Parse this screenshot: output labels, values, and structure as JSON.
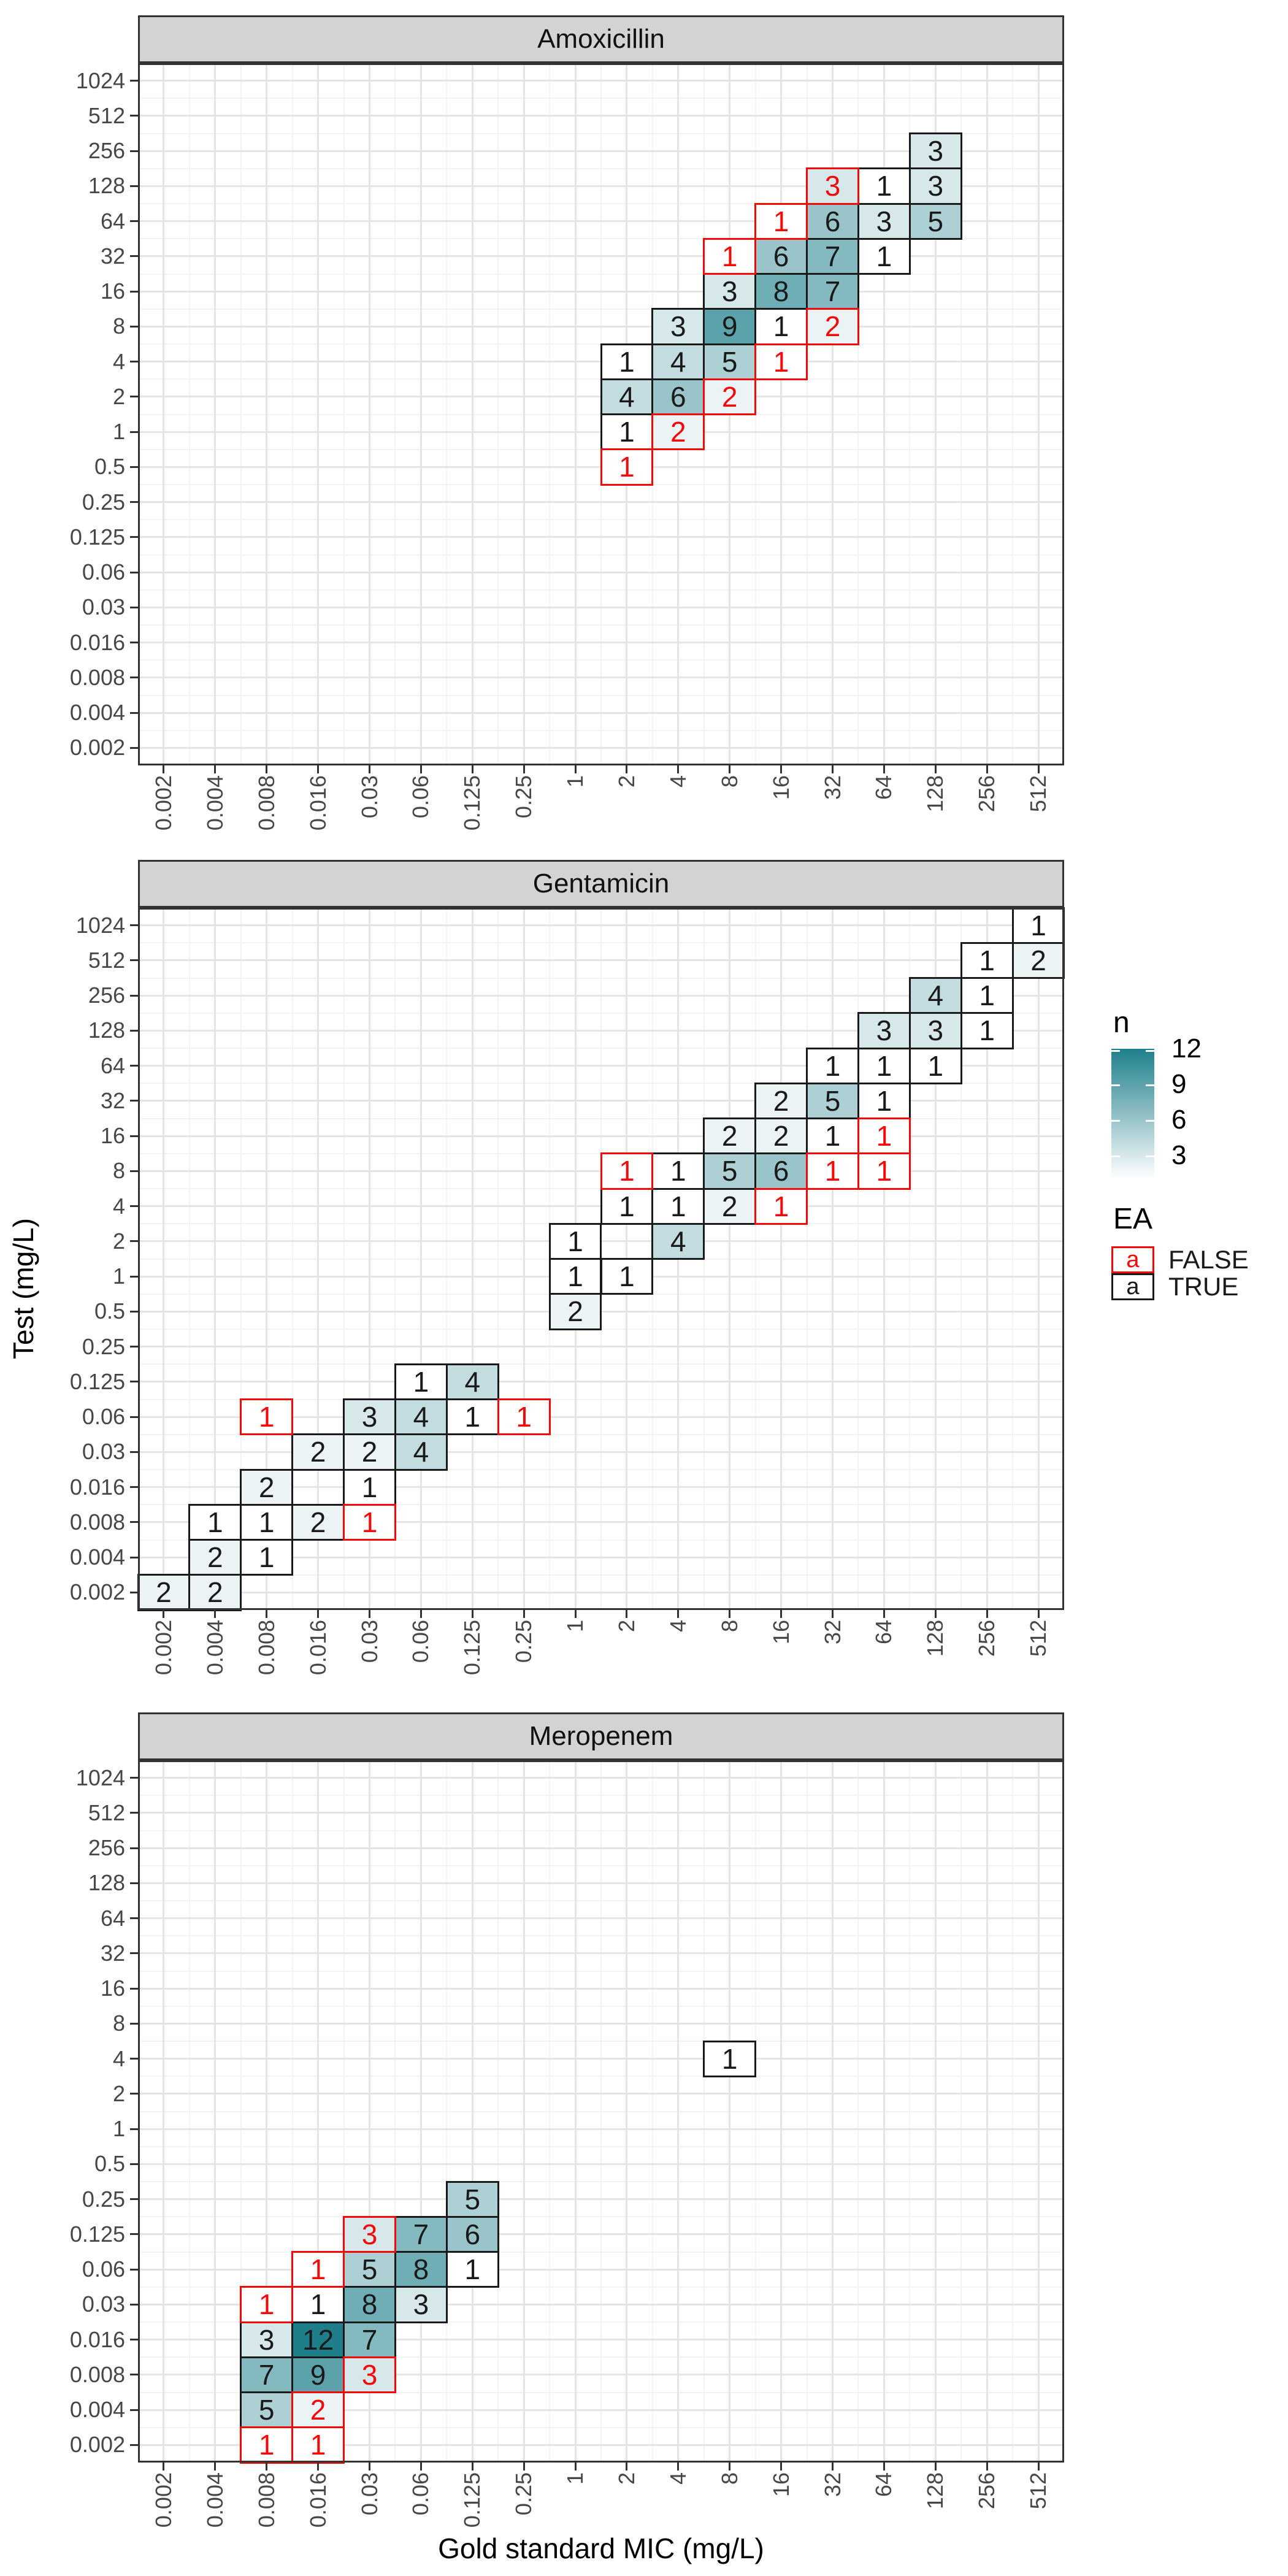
{
  "chart_data": {
    "type": "heatmap",
    "title": "",
    "xlabel": "Gold standard MIC (mg/L)",
    "ylabel": "Test (mg/L)",
    "x_categories": [
      "0.002",
      "0.004",
      "0.008",
      "0.016",
      "0.03",
      "0.06",
      "0.125",
      "0.25",
      "1",
      "2",
      "4",
      "8",
      "16",
      "32",
      "64",
      "128",
      "256",
      "512"
    ],
    "y_categories_top_to_bottom": [
      "1024",
      "512",
      "256",
      "128",
      "64",
      "32",
      "16",
      "8",
      "4",
      "2",
      "1",
      "0.5",
      "0.25",
      "0.125",
      "0.06",
      "0.03",
      "0.016",
      "0.008",
      "0.004",
      "0.002"
    ],
    "fill_scale": {
      "name": "n",
      "low": "#FFFFFF",
      "high": "#1E7F8B",
      "domain": [
        1,
        12
      ],
      "legend_ticks": [
        12,
        9,
        6,
        3
      ]
    },
    "border_scale": {
      "name": "EA",
      "false_color": "#F40909",
      "true_color": "#1A1A1A",
      "items": [
        {
          "key": "a",
          "label": "FALSE"
        },
        {
          "key": "a",
          "label": "TRUE"
        }
      ]
    },
    "facets": [
      {
        "title": "Amoxicillin",
        "cells": [
          {
            "x": "128",
            "y": "256",
            "n": 3,
            "ea": true
          },
          {
            "x": "32",
            "y": "128",
            "n": 3,
            "ea": false
          },
          {
            "x": "64",
            "y": "128",
            "n": 1,
            "ea": true
          },
          {
            "x": "128",
            "y": "128",
            "n": 3,
            "ea": true
          },
          {
            "x": "16",
            "y": "64",
            "n": 1,
            "ea": false
          },
          {
            "x": "32",
            "y": "64",
            "n": 6,
            "ea": true
          },
          {
            "x": "64",
            "y": "64",
            "n": 3,
            "ea": true
          },
          {
            "x": "128",
            "y": "64",
            "n": 5,
            "ea": true
          },
          {
            "x": "8",
            "y": "32",
            "n": 1,
            "ea": false
          },
          {
            "x": "16",
            "y": "32",
            "n": 6,
            "ea": true
          },
          {
            "x": "32",
            "y": "32",
            "n": 7,
            "ea": true
          },
          {
            "x": "64",
            "y": "32",
            "n": 1,
            "ea": true
          },
          {
            "x": "8",
            "y": "16",
            "n": 3,
            "ea": true
          },
          {
            "x": "16",
            "y": "16",
            "n": 8,
            "ea": true
          },
          {
            "x": "32",
            "y": "16",
            "n": 7,
            "ea": true
          },
          {
            "x": "4",
            "y": "8",
            "n": 3,
            "ea": true
          },
          {
            "x": "8",
            "y": "8",
            "n": 9,
            "ea": true
          },
          {
            "x": "16",
            "y": "8",
            "n": 1,
            "ea": true
          },
          {
            "x": "32",
            "y": "8",
            "n": 2,
            "ea": false
          },
          {
            "x": "2",
            "y": "4",
            "n": 1,
            "ea": true
          },
          {
            "x": "4",
            "y": "4",
            "n": 4,
            "ea": true
          },
          {
            "x": "8",
            "y": "4",
            "n": 5,
            "ea": true
          },
          {
            "x": "16",
            "y": "4",
            "n": 1,
            "ea": false
          },
          {
            "x": "2",
            "y": "2",
            "n": 4,
            "ea": true
          },
          {
            "x": "4",
            "y": "2",
            "n": 6,
            "ea": true
          },
          {
            "x": "8",
            "y": "2",
            "n": 2,
            "ea": false
          },
          {
            "x": "2",
            "y": "1",
            "n": 1,
            "ea": true
          },
          {
            "x": "4",
            "y": "1",
            "n": 2,
            "ea": false
          },
          {
            "x": "2",
            "y": "0.5",
            "n": 1,
            "ea": false
          }
        ]
      },
      {
        "title": "Gentamicin",
        "cells": [
          {
            "x": "512",
            "y": "1024",
            "n": 1,
            "ea": true
          },
          {
            "x": "256",
            "y": "512",
            "n": 1,
            "ea": true
          },
          {
            "x": "512",
            "y": "512",
            "n": 2,
            "ea": true
          },
          {
            "x": "128",
            "y": "256",
            "n": 4,
            "ea": true
          },
          {
            "x": "256",
            "y": "256",
            "n": 1,
            "ea": true
          },
          {
            "x": "64",
            "y": "128",
            "n": 3,
            "ea": true
          },
          {
            "x": "128",
            "y": "128",
            "n": 3,
            "ea": true
          },
          {
            "x": "256",
            "y": "128",
            "n": 1,
            "ea": true
          },
          {
            "x": "32",
            "y": "64",
            "n": 1,
            "ea": true
          },
          {
            "x": "64",
            "y": "64",
            "n": 1,
            "ea": true
          },
          {
            "x": "128",
            "y": "64",
            "n": 1,
            "ea": true
          },
          {
            "x": "16",
            "y": "32",
            "n": 2,
            "ea": true
          },
          {
            "x": "32",
            "y": "32",
            "n": 5,
            "ea": true
          },
          {
            "x": "64",
            "y": "32",
            "n": 1,
            "ea": true
          },
          {
            "x": "8",
            "y": "16",
            "n": 2,
            "ea": true
          },
          {
            "x": "16",
            "y": "16",
            "n": 2,
            "ea": true
          },
          {
            "x": "32",
            "y": "16",
            "n": 1,
            "ea": true
          },
          {
            "x": "64",
            "y": "16",
            "n": 1,
            "ea": false
          },
          {
            "x": "2",
            "y": "8",
            "n": 1,
            "ea": false
          },
          {
            "x": "4",
            "y": "8",
            "n": 1,
            "ea": true
          },
          {
            "x": "8",
            "y": "8",
            "n": 5,
            "ea": true
          },
          {
            "x": "16",
            "y": "8",
            "n": 6,
            "ea": true
          },
          {
            "x": "32",
            "y": "8",
            "n": 1,
            "ea": false
          },
          {
            "x": "64",
            "y": "8",
            "n": 1,
            "ea": false
          },
          {
            "x": "2",
            "y": "4",
            "n": 1,
            "ea": true
          },
          {
            "x": "4",
            "y": "4",
            "n": 1,
            "ea": true
          },
          {
            "x": "8",
            "y": "4",
            "n": 2,
            "ea": true
          },
          {
            "x": "16",
            "y": "4",
            "n": 1,
            "ea": false
          },
          {
            "x": "1",
            "y": "2",
            "n": 1,
            "ea": true
          },
          {
            "x": "4",
            "y": "2",
            "n": 4,
            "ea": true
          },
          {
            "x": "1",
            "y": "1",
            "n": 1,
            "ea": true
          },
          {
            "x": "2",
            "y": "1",
            "n": 1,
            "ea": true
          },
          {
            "x": "1",
            "y": "0.5",
            "n": 2,
            "ea": true
          },
          {
            "x": "0.06",
            "y": "0.125",
            "n": 1,
            "ea": true
          },
          {
            "x": "0.125",
            "y": "0.125",
            "n": 4,
            "ea": true
          },
          {
            "x": "0.008",
            "y": "0.06",
            "n": 1,
            "ea": false
          },
          {
            "x": "0.03",
            "y": "0.06",
            "n": 3,
            "ea": true
          },
          {
            "x": "0.06",
            "y": "0.06",
            "n": 4,
            "ea": true
          },
          {
            "x": "0.125",
            "y": "0.06",
            "n": 1,
            "ea": true
          },
          {
            "x": "0.25",
            "y": "0.06",
            "n": 1,
            "ea": false
          },
          {
            "x": "0.016",
            "y": "0.03",
            "n": 2,
            "ea": true
          },
          {
            "x": "0.03",
            "y": "0.03",
            "n": 2,
            "ea": true
          },
          {
            "x": "0.06",
            "y": "0.03",
            "n": 4,
            "ea": true
          },
          {
            "x": "0.008",
            "y": "0.016",
            "n": 2,
            "ea": true
          },
          {
            "x": "0.03",
            "y": "0.016",
            "n": 1,
            "ea": true
          },
          {
            "x": "0.004",
            "y": "0.008",
            "n": 1,
            "ea": true
          },
          {
            "x": "0.008",
            "y": "0.008",
            "n": 1,
            "ea": true
          },
          {
            "x": "0.016",
            "y": "0.008",
            "n": 2,
            "ea": true
          },
          {
            "x": "0.03",
            "y": "0.008",
            "n": 1,
            "ea": false
          },
          {
            "x": "0.004",
            "y": "0.004",
            "n": 2,
            "ea": true
          },
          {
            "x": "0.008",
            "y": "0.004",
            "n": 1,
            "ea": true
          },
          {
            "x": "0.002",
            "y": "0.002",
            "n": 2,
            "ea": true
          },
          {
            "x": "0.004",
            "y": "0.002",
            "n": 2,
            "ea": true
          }
        ]
      },
      {
        "title": "Meropenem",
        "cells": [
          {
            "x": "8",
            "y": "4",
            "n": 1,
            "ea": true
          },
          {
            "x": "0.125",
            "y": "0.25",
            "n": 5,
            "ea": true
          },
          {
            "x": "0.03",
            "y": "0.125",
            "n": 3,
            "ea": false
          },
          {
            "x": "0.06",
            "y": "0.125",
            "n": 7,
            "ea": true
          },
          {
            "x": "0.125",
            "y": "0.125",
            "n": 6,
            "ea": true
          },
          {
            "x": "0.016",
            "y": "0.06",
            "n": 1,
            "ea": false
          },
          {
            "x": "0.03",
            "y": "0.06",
            "n": 5,
            "ea": true
          },
          {
            "x": "0.06",
            "y": "0.06",
            "n": 8,
            "ea": true
          },
          {
            "x": "0.125",
            "y": "0.06",
            "n": 1,
            "ea": true
          },
          {
            "x": "0.008",
            "y": "0.03",
            "n": 1,
            "ea": false
          },
          {
            "x": "0.016",
            "y": "0.03",
            "n": 1,
            "ea": true
          },
          {
            "x": "0.03",
            "y": "0.03",
            "n": 8,
            "ea": true
          },
          {
            "x": "0.06",
            "y": "0.03",
            "n": 3,
            "ea": true
          },
          {
            "x": "0.008",
            "y": "0.016",
            "n": 3,
            "ea": true
          },
          {
            "x": "0.016",
            "y": "0.016",
            "n": 12,
            "ea": true
          },
          {
            "x": "0.03",
            "y": "0.016",
            "n": 7,
            "ea": true
          },
          {
            "x": "0.008",
            "y": "0.008",
            "n": 7,
            "ea": true
          },
          {
            "x": "0.016",
            "y": "0.008",
            "n": 9,
            "ea": true
          },
          {
            "x": "0.03",
            "y": "0.008",
            "n": 3,
            "ea": false
          },
          {
            "x": "0.008",
            "y": "0.004",
            "n": 5,
            "ea": true
          },
          {
            "x": "0.016",
            "y": "0.004",
            "n": 2,
            "ea": false
          },
          {
            "x": "0.008",
            "y": "0.002",
            "n": 1,
            "ea": false
          },
          {
            "x": "0.016",
            "y": "0.002",
            "n": 1,
            "ea": false
          }
        ]
      },
      {
        "title_spare": ""
      }
    ],
    "legend": {
      "n_title": "n",
      "ea_title": "EA",
      "ea_false_label": "FALSE",
      "ea_true_label": "TRUE",
      "key_letter": "a"
    },
    "layout_hints": {
      "grid": "on",
      "legend_position": "right",
      "x_label_rotation_deg": 90
    }
  },
  "style_colors": {
    "strip_background": "#D3D3D3",
    "panel_border": "#333333",
    "grid_major": "#E5E5E5",
    "grid_minor": "#F3F3F3",
    "axis_text": "#474747",
    "ea_false_red": "#F40909",
    "fill_high_teal": "#1E7F8B"
  }
}
